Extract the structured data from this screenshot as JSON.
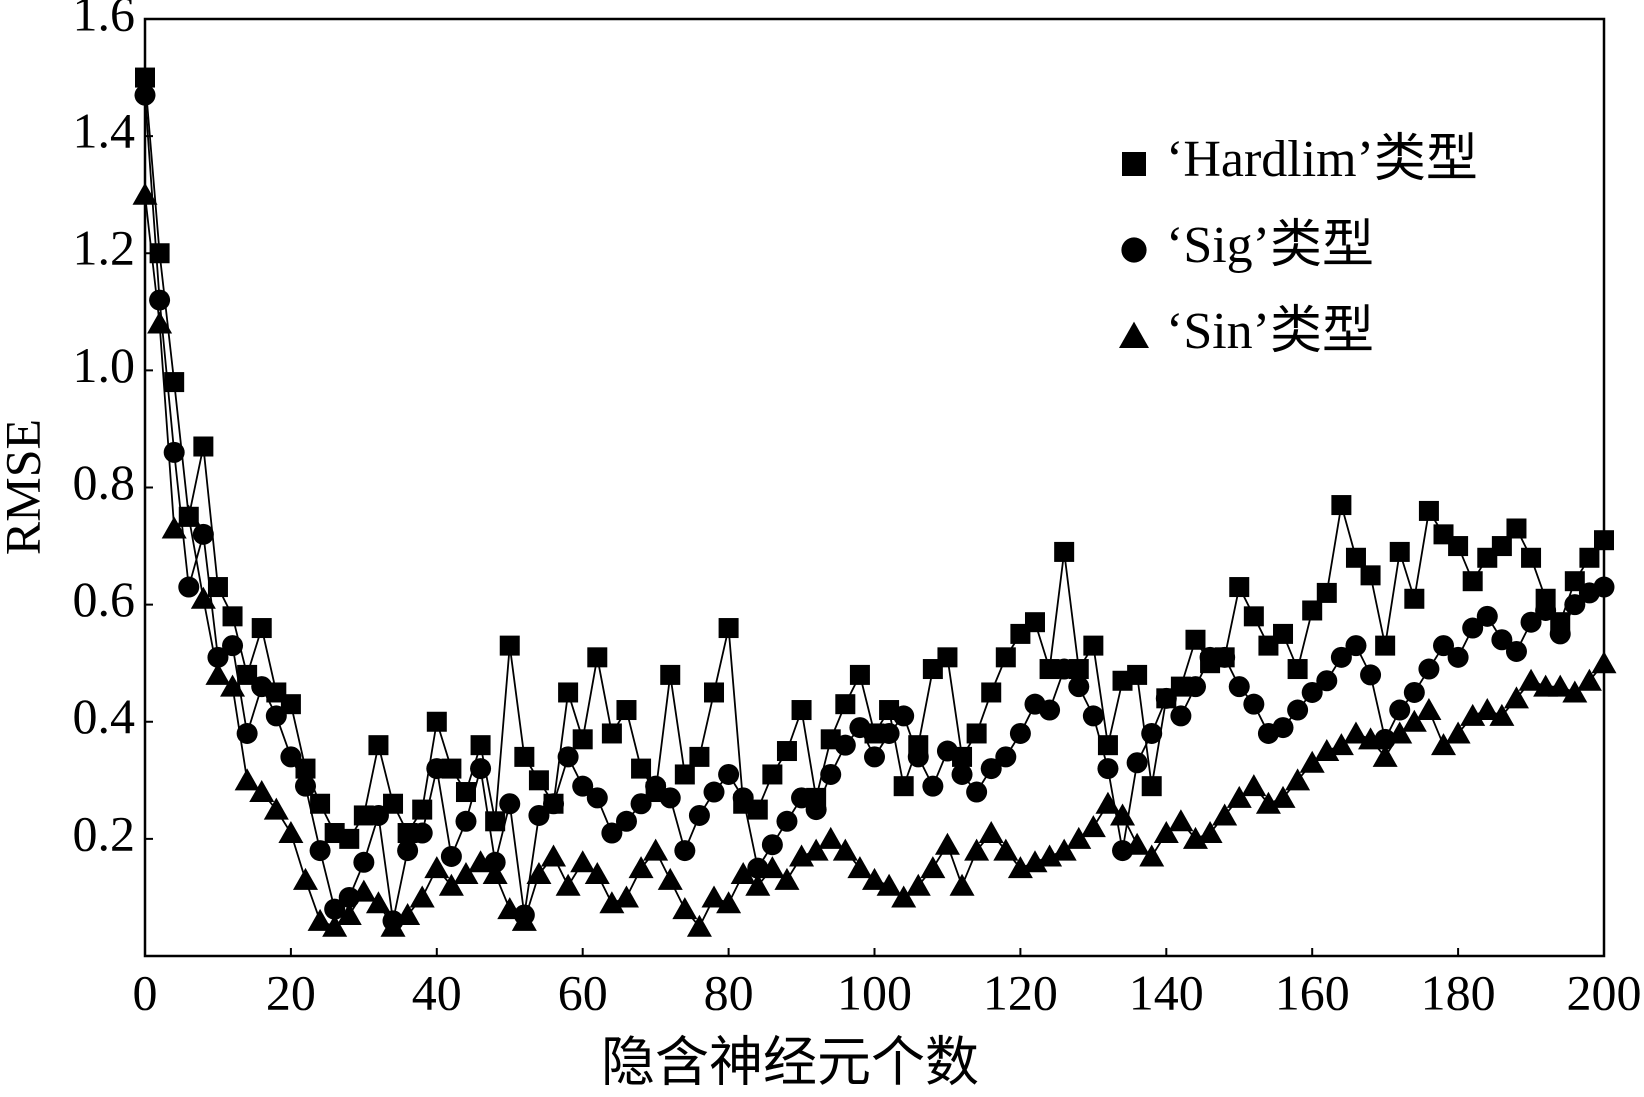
{
  "chart_data": {
    "type": "line",
    "x_label": "隐含神经元个数",
    "y_label": "RMSE",
    "x": [
      0,
      2,
      4,
      6,
      8,
      10,
      12,
      14,
      16,
      18,
      20,
      22,
      24,
      26,
      28,
      30,
      32,
      34,
      36,
      38,
      40,
      42,
      44,
      46,
      48,
      50,
      52,
      54,
      56,
      58,
      60,
      62,
      64,
      66,
      68,
      70,
      72,
      74,
      76,
      78,
      80,
      82,
      84,
      86,
      88,
      90,
      92,
      94,
      96,
      98,
      100,
      102,
      104,
      106,
      108,
      110,
      112,
      114,
      116,
      118,
      120,
      122,
      124,
      126,
      128,
      130,
      132,
      134,
      136,
      138,
      140,
      142,
      144,
      146,
      148,
      150,
      152,
      154,
      156,
      158,
      160,
      162,
      164,
      166,
      168,
      170,
      172,
      174,
      176,
      178,
      180,
      182,
      184,
      186,
      188,
      190,
      192,
      194,
      196,
      198,
      200
    ],
    "series": [
      {
        "name": "‘Hardlim’类型",
        "color": "#000000",
        "marker": "square",
        "values": [
          1.5,
          1.2,
          0.98,
          0.75,
          0.87,
          0.63,
          0.58,
          0.48,
          0.56,
          0.45,
          0.43,
          0.32,
          0.26,
          0.21,
          0.2,
          0.24,
          0.36,
          0.26,
          0.21,
          0.25,
          0.4,
          0.32,
          0.28,
          0.36,
          0.23,
          0.53,
          0.34,
          0.3,
          0.26,
          0.45,
          0.37,
          0.51,
          0.38,
          0.42,
          0.32,
          0.28,
          0.48,
          0.31,
          0.34,
          0.45,
          0.56,
          0.26,
          0.25,
          0.31,
          0.35,
          0.42,
          0.27,
          0.37,
          0.43,
          0.48,
          0.38,
          0.42,
          0.29,
          0.36,
          0.49,
          0.51,
          0.34,
          0.38,
          0.45,
          0.51,
          0.55,
          0.57,
          0.49,
          0.69,
          0.49,
          0.53,
          0.36,
          0.47,
          0.48,
          0.29,
          0.44,
          0.46,
          0.54,
          0.5,
          0.51,
          0.63,
          0.58,
          0.53,
          0.55,
          0.49,
          0.59,
          0.62,
          0.77,
          0.68,
          0.65,
          0.53,
          0.69,
          0.61,
          0.76,
          0.72,
          0.7,
          0.64,
          0.68,
          0.7,
          0.73,
          0.68,
          0.61,
          0.57,
          0.64,
          0.68,
          0.71
        ]
      },
      {
        "name": "‘Sig’类型",
        "color": "#000000",
        "marker": "circle",
        "values": [
          1.47,
          1.12,
          0.86,
          0.63,
          0.72,
          0.51,
          0.53,
          0.38,
          0.46,
          0.41,
          0.34,
          0.29,
          0.18,
          0.08,
          0.1,
          0.16,
          0.24,
          0.06,
          0.18,
          0.21,
          0.32,
          0.17,
          0.23,
          0.32,
          0.16,
          0.26,
          0.07,
          0.24,
          0.26,
          0.34,
          0.29,
          0.27,
          0.21,
          0.23,
          0.26,
          0.29,
          0.27,
          0.18,
          0.24,
          0.28,
          0.31,
          0.27,
          0.15,
          0.19,
          0.23,
          0.27,
          0.25,
          0.31,
          0.36,
          0.39,
          0.34,
          0.38,
          0.41,
          0.34,
          0.29,
          0.35,
          0.31,
          0.28,
          0.32,
          0.34,
          0.38,
          0.43,
          0.42,
          0.49,
          0.46,
          0.41,
          0.32,
          0.18,
          0.33,
          0.38,
          0.44,
          0.41,
          0.46,
          0.51,
          0.51,
          0.46,
          0.43,
          0.38,
          0.39,
          0.42,
          0.45,
          0.47,
          0.51,
          0.53,
          0.48,
          0.37,
          0.42,
          0.45,
          0.49,
          0.53,
          0.51,
          0.56,
          0.58,
          0.54,
          0.52,
          0.57,
          0.59,
          0.55,
          0.6,
          0.62,
          0.63
        ]
      },
      {
        "name": "‘Sin’类型",
        "color": "#000000",
        "marker": "triangle",
        "values": [
          1.3,
          1.08,
          0.73,
          0.75,
          0.61,
          0.48,
          0.46,
          0.3,
          0.28,
          0.25,
          0.21,
          0.13,
          0.06,
          0.05,
          0.07,
          0.11,
          0.09,
          0.05,
          0.07,
          0.1,
          0.15,
          0.12,
          0.14,
          0.16,
          0.14,
          0.08,
          0.06,
          0.14,
          0.17,
          0.12,
          0.16,
          0.14,
          0.09,
          0.1,
          0.15,
          0.18,
          0.13,
          0.08,
          0.05,
          0.1,
          0.09,
          0.14,
          0.12,
          0.15,
          0.13,
          0.17,
          0.18,
          0.2,
          0.18,
          0.15,
          0.13,
          0.12,
          0.1,
          0.12,
          0.15,
          0.19,
          0.12,
          0.18,
          0.21,
          0.18,
          0.15,
          0.16,
          0.17,
          0.18,
          0.2,
          0.22,
          0.26,
          0.24,
          0.19,
          0.17,
          0.21,
          0.23,
          0.2,
          0.21,
          0.24,
          0.27,
          0.29,
          0.26,
          0.27,
          0.3,
          0.33,
          0.35,
          0.36,
          0.38,
          0.37,
          0.34,
          0.38,
          0.4,
          0.42,
          0.36,
          0.38,
          0.41,
          0.42,
          0.41,
          0.44,
          0.47,
          0.46,
          0.46,
          0.45,
          0.47,
          0.5
        ]
      }
    ],
    "xlim": [
      0,
      200
    ],
    "ylim": [
      0,
      1.6
    ],
    "xticks": [
      0,
      20,
      40,
      60,
      80,
      100,
      120,
      140,
      160,
      180,
      200
    ],
    "yticks": [
      0.2,
      0.4,
      0.6,
      0.8,
      {
        "value": 1,
        "label": "1.0"
      },
      1.2,
      1.4,
      1.6
    ],
    "grid": false,
    "legend": "upper right"
  }
}
